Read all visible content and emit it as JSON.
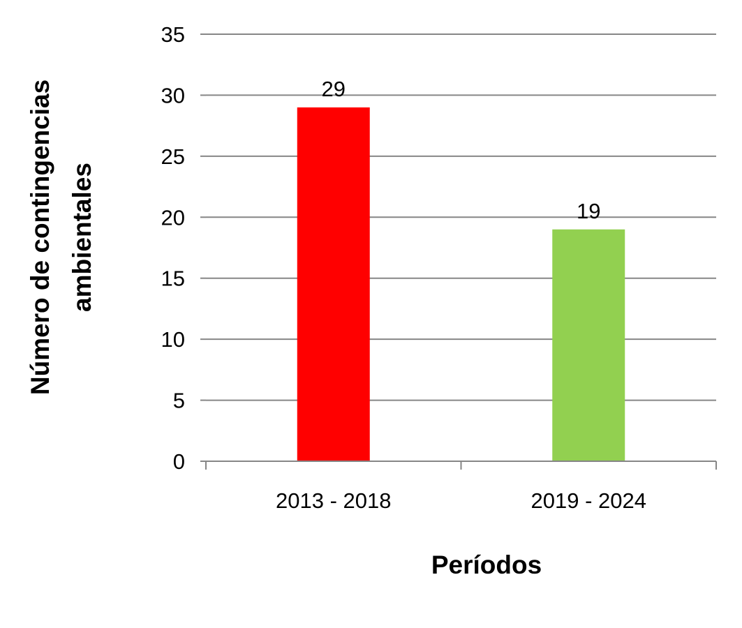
{
  "chart_data": {
    "type": "bar",
    "categories": [
      "2013 - 2018",
      "2019 - 2024"
    ],
    "values": [
      29,
      19
    ],
    "bar_colors": [
      "#ff0000",
      "#92d050"
    ],
    "data_labels": [
      "29",
      "19"
    ],
    "title": "",
    "xlabel": "Períodos",
    "ylabel_lines": [
      "Número de contingencias",
      "ambientales"
    ],
    "ylim": [
      0,
      35
    ],
    "yticks": [
      0,
      5,
      10,
      15,
      20,
      25,
      30,
      35
    ],
    "grid": true,
    "gridline_color": "#868686"
  }
}
